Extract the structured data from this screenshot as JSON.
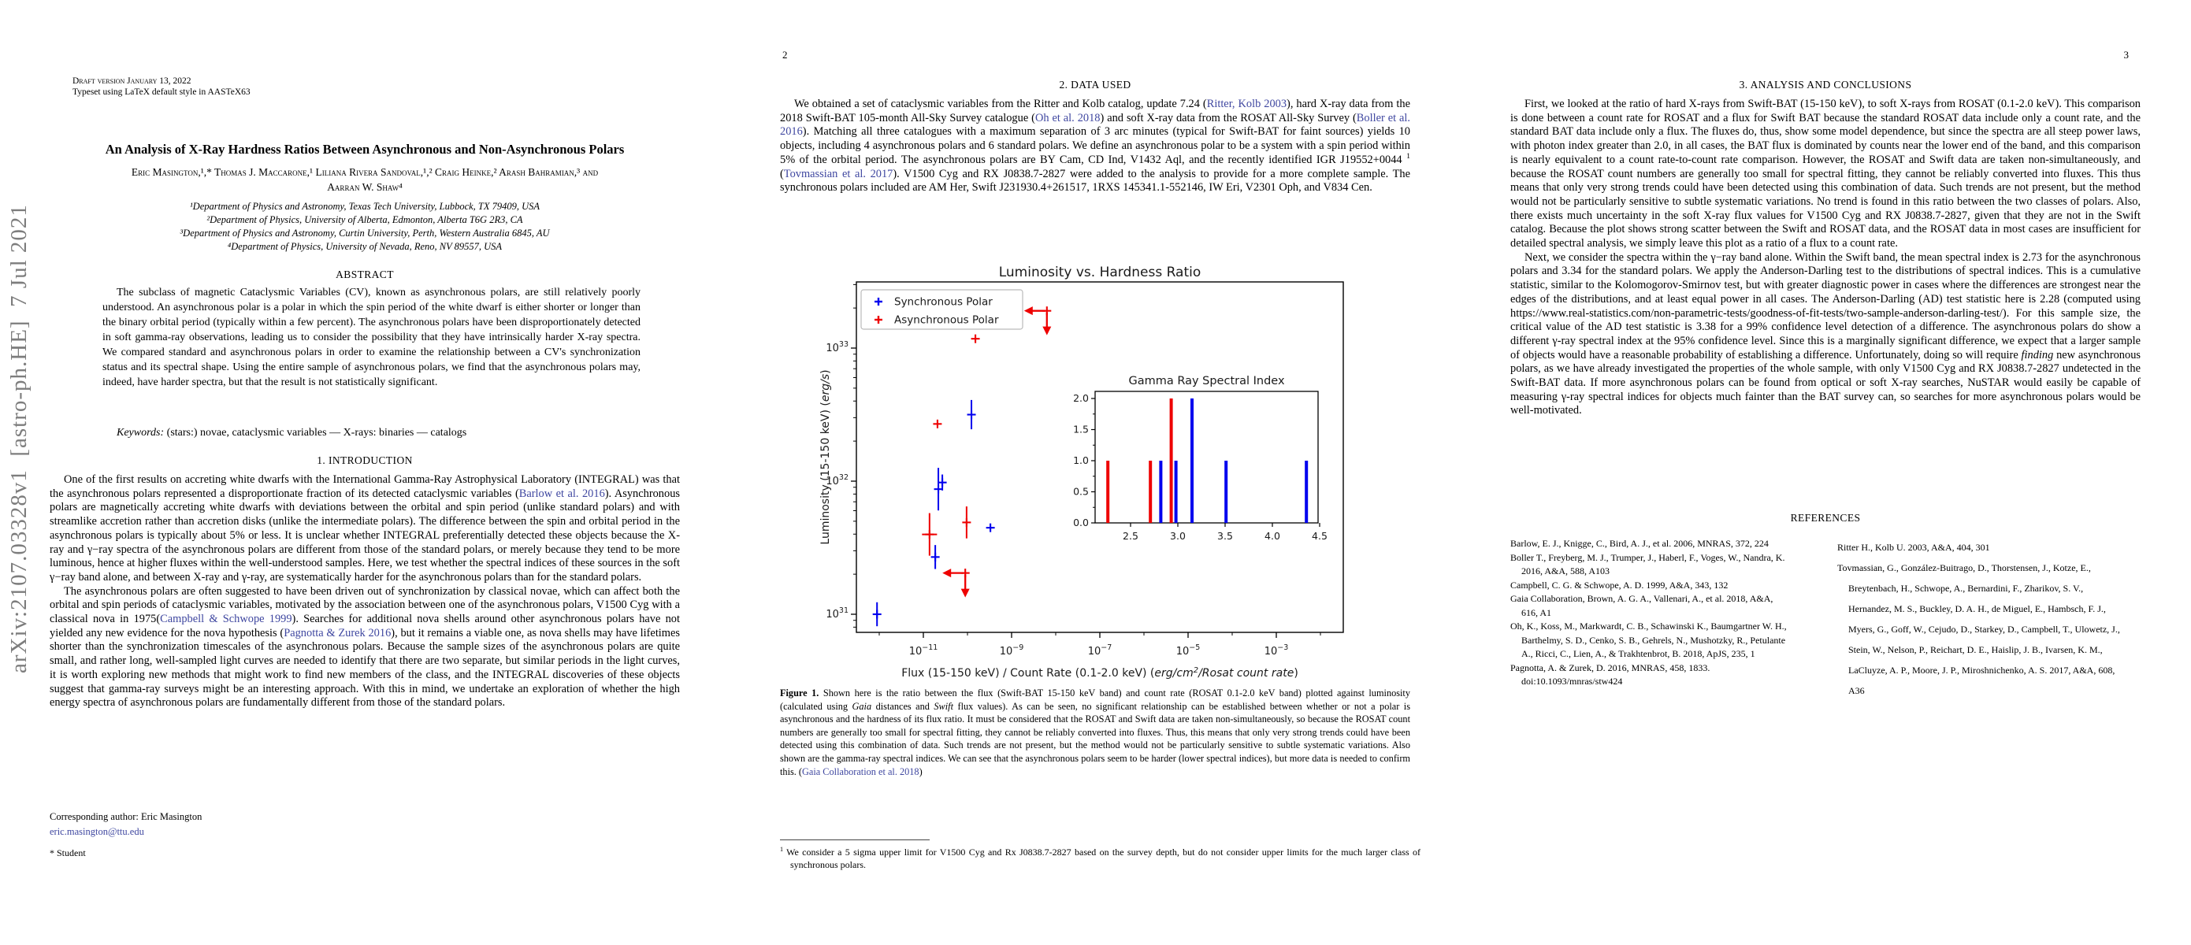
{
  "colors": {
    "link": "#3f47a0",
    "watermark": "#7d7d7d",
    "sync_blue": "#0000ee",
    "async_red": "#ee0000"
  },
  "pages": {
    "page1": {
      "arxiv_watermark": "arXiv:2107.03328v1  [astro-ph.HE]  7 Jul 2021",
      "header_line1": "Draft version January 13, 2022",
      "header_line2": "Typeset using LaTeX default style in AASTeX63",
      "title": "An Analysis of X-Ray Hardness Ratios Between Asynchronous and Non-Asynchronous Polars",
      "authors_line1": "Eric Masington,¹,* Thomas J. Maccarone,¹ Liliana Rivera Sandoval,¹,² Craig Heinke,² Arash Bahramian,³ and",
      "authors_line2": "Aarran W. Shaw⁴",
      "affiliations": [
        "¹Department of Physics and Astronomy, Texas Tech University, Lubbock, TX 79409, USA",
        "²Department of Physics, University of Alberta, Edmonton, Alberta T6G 2R3, CA",
        "³Department of Physics and Astronomy, Curtin University, Perth, Western Australia 6845, AU",
        "⁴Department of Physics, University of Nevada, Reno, NV 89557, USA"
      ],
      "abstract_heading": "ABSTRACT",
      "abstract_text": "The subclass of magnetic Cataclysmic Variables (CV), known as asynchronous polars, are still relatively poorly understood. An asynchronous polar is a polar in which the spin period of the white dwarf is either shorter or longer than the binary orbital period (typically within a few percent). The asynchronous polars have been disproportionately detected in soft gamma-ray observations, leading us to consider the possibility that they have intrinsically harder X-ray spectra. We compared standard and asynchronous polars in order to examine the relationship between a CV's synchronization status and its spectral shape. Using the entire sample of asynchronous polars, we find that the asynchronous polars may, indeed, have harder spectra, but that the result is not statistically significant.",
      "keywords": [
        {
          "t": "Keywords:",
          "s": "i"
        },
        {
          "t": " (stars:) novae, cataclysmic variables — X-rays: binaries — catalogs"
        }
      ],
      "section1_heading": "1. INTRODUCTION",
      "intro_p1": [
        {
          "t": "One of the first results on accreting white dwarfs with the International Gamma-Ray Astrophysical Laboratory (INTEGRAL) was that the asynchronous polars represented a disproportionate fraction of its detected cataclysmic variables ("
        },
        {
          "t": "Barlow et al. 2016",
          "s": "link"
        },
        {
          "t": "). Asynchronous polars are magnetically accreting white dwarfs with deviations between the orbital and spin period (unlike standard polars) and with streamlike accretion rather than accretion disks (unlike the intermediate polars). The difference between the spin and orbital period in the asynchronous polars is typically about 5% or less. It is unclear whether INTEGRAL preferentially detected these objects because the X-ray and γ−ray spectra of the asynchronous polars are different from those of the standard polars, or merely because they tend to be more luminous, hence at higher fluxes within the well-understood samples. Here, we test whether the spectral indices of these sources in the soft γ−ray band alone, and between X-ray and γ-ray, are systematically harder for the asynchronous polars than for the standard polars."
        }
      ],
      "intro_p2": [
        {
          "t": "The asynchronous polars are often suggested to have been driven out of synchronization by classical novae, which can affect both the orbital and spin periods of cataclysmic variables, motivated by the association between one of the asynchronous polars, V1500 Cyg with a classical nova in 1975("
        },
        {
          "t": "Campbell & Schwope 1999",
          "s": "link"
        },
        {
          "t": "). Searches for additional nova shells around other asynchronous polars have not yielded any new evidence for the nova hypothesis ("
        },
        {
          "t": "Pagnotta & Zurek 2016",
          "s": "link"
        },
        {
          "t": "), but it remains a viable one, as nova shells may have lifetimes shorter than the synchronization timescales of the asynchronous polars. Because the sample sizes of the asynchronous polars are quite small, and rather long, well-sampled light curves are needed to identify that there are two separate, but similar periods in the light curves, it is worth exploring new methods that might work to find new members of the class, and the INTEGRAL discoveries of these objects suggest that gamma-ray surveys might be an interesting approach. With this in mind, we undertake an exploration of whether the high energy spectra of asynchronous polars are fundamentally different from those of the standard polars."
        }
      ],
      "corresponding_label": "Corresponding author: Eric Masington",
      "corresponding_email": "eric.masington@ttu.edu",
      "student_note": "* Student"
    },
    "page2": {
      "page_number": "2",
      "section_heading": "2. DATA USED",
      "body": [
        {
          "t": "We obtained a set of cataclysmic variables from the Ritter and Kolb catalog, update 7.24 ("
        },
        {
          "t": "Ritter, Kolb 2003",
          "s": "link"
        },
        {
          "t": "), hard X-ray data from the 2018 Swift-BAT 105-month All-Sky Survey catalogue ("
        },
        {
          "t": "Oh et al. 2018",
          "s": "link"
        },
        {
          "t": ") and soft X-ray data from the ROSAT All-Sky Survey ("
        },
        {
          "t": "Boller et al. 2016",
          "s": "link"
        },
        {
          "t": "). Matching all three catalogues with a maximum separation of 3 arc minutes (typical for Swift-BAT for faint sources) yields 10 objects, including 4 asynchronous polars and 6 standard polars. We define an asynchronous polar to be a system with a spin period within 5% of the orbital period. The asynchronous polars are BY Cam, CD Ind, V1432 Aql, and the recently identified IGR J19552+0044 "
        },
        {
          "t": "1",
          "s": "sup"
        },
        {
          "t": " ("
        },
        {
          "t": "Tovmassian et al. 2017",
          "s": "link"
        },
        {
          "t": "). V1500 Cyg and RX J0838.7-2827 were added to the analysis to provide for a more complete sample. The synchronous polars included are AM Her, Swift J231930.4+261517, 1RXS 145341.1-552146, IW Eri, V2301 Oph, and V834 Cen."
        }
      ],
      "figure_caption": [
        {
          "t": "Figure 1.",
          "s": "b"
        },
        {
          "t": " Shown here is the ratio between the flux (Swift-BAT 15-150 keV band) and count rate (ROSAT 0.1-2.0 keV band) plotted against luminosity (calculated using "
        },
        {
          "t": "Gaia",
          "s": "i"
        },
        {
          "t": " distances and "
        },
        {
          "t": "Swift",
          "s": "i"
        },
        {
          "t": " flux values). As can be seen, no significant relationship can be established between whether or not a polar is asynchronous and the hardness of its flux ratio. It must be considered that the ROSAT and Swift data are taken non-simultaneously, so because the ROSAT count numbers are generally too small for spectral fitting, they cannot be reliably converted into fluxes. Thus, this means that only very strong trends could have been detected using this combination of data. Such trends are not present, but the method would not be particularly sensitive to subtle systematic variations. Also shown are the gamma-ray spectral indices. We can see that the asynchronous polars seem to be harder (lower spectral indices), but more data is needed to confirm this. ("
        },
        {
          "t": "Gaia Collaboration et al. 2018",
          "s": "link"
        },
        {
          "t": ")"
        }
      ],
      "footnote": [
        {
          "t": "1",
          "s": "sup"
        },
        {
          "t": " We consider a 5 sigma upper limit for V1500 Cyg and Rx J0838.7-2827 based on the survey depth, but do not consider upper limits for the much larger class of synchronous polars."
        }
      ]
    },
    "page3": {
      "page_number": "3",
      "section_heading": "3. ANALYSIS AND CONCLUSIONS",
      "p1": [
        {
          "t": "First, we looked at the ratio of hard X-rays from Swift-BAT (15-150 keV), to soft X-rays from ROSAT (0.1-2.0 keV). This comparison is done between a count rate for ROSAT and a flux for Swift BAT because the standard ROSAT data include only a count rate, and the standard BAT data include only a flux. The fluxes do, thus, show some model dependence, but since the spectra are all steep power laws, with photon index greater than 2.0, in all cases, the BAT flux is dominated by counts near the lower end of the band, and this comparison is nearly equivalent to a count rate-to-count rate comparison. However, the ROSAT and Swift data are taken non-simultaneously, and because the ROSAT count numbers are generally too small for spectral fitting, they cannot be reliably converted into fluxes. This thus means that only very strong trends could have been detected using this combination of data. Such trends are not present, but the method would not be particularly sensitive to subtle systematic variations. No trend is found in this ratio between the two classes of polars. Also, there exists much uncertainty in the soft X-ray flux values for V1500 Cyg and RX J0838.7-2827, given that they are not in the Swift catalog. Because the plot shows strong scatter between the Swift and ROSAT data, and the ROSAT data in most cases are insufficient for detailed spectral analysis, we simply leave this plot as a ratio of a flux to a count rate."
        }
      ],
      "p2": [
        {
          "t": "Next, we consider the spectra within the γ−ray band alone. Within the Swift band, the mean spectral index is 2.73 for the asynchronous polars and 3.34 for the standard polars. We apply the Anderson-Darling test to the distributions of spectral indices. This is a cumulative statistic, similar to the Kolomogorov-Smirnov test, but with greater diagnostic power in cases where the differences are strongest near the edges of the distributions, and at least equal power in all cases. The Anderson-Darling (AD) test statistic here is 2.28 (computed using https://www.real-statistics.com/non-parametric-tests/goodness-of-fit-tests/two-sample-anderson-darling-test/). For this sample size, the critical value of the AD test statistic is 3.38 for a 99% confidence level detection of a difference. The asynchronous polars do show a different γ-ray spectral index at the 95% confidence level. Since this is a marginally significant difference, we expect that a larger sample of objects would have a reasonable probability of establishing a difference. Unfortunately, doing so will require "
        },
        {
          "t": "finding",
          "s": "i"
        },
        {
          "t": " new asynchronous polars, as we have already investigated the properties of the whole sample, with only V1500 Cyg and RX J0838.7-2827 undetected in the Swift-BAT data. If more asynchronous polars can be found from optical or soft X-ray searches, NuSTAR would easily be capable of measuring γ-ray spectral indices for objects much fainter than the BAT survey can, so searches for more asynchronous polars would be well-motivated."
        }
      ],
      "references_heading": "REFERENCES",
      "references_left": [
        "Barlow, E. J., Knigge, C., Bird, A. J., et al. 2006, MNRAS, 372, 224",
        "Boller T., Freyberg, M. J., Trumper, J., Haberl, F., Voges, W., Nandra, K.  2016, A&A, 588, A103",
        "Campbell, C. G. & Schwope, A. D. 1999, A&A, 343, 132",
        "Gaia Collaboration, Brown, A. G. A., Vallenari, A., et al. 2018, A&A, 616, A1",
        "Oh, K., Koss, M., Markwardt, C. B., Schawinski K., Baumgartner W. H., Barthelmy, S. D., Cenko, S. B., Gehrels, N., Mushotzky, R., Petulante A., Ricci, C., Lien, A., & Trakhtenbrot, B.  2018, ApJS, 235, 1",
        "Pagnotta, A. & Zurek, D. 2016, MNRAS, 458, 1833. doi:10.1093/mnras/stw424"
      ],
      "references_right": [
        "Ritter H., Kolb U.  2003, A&A, 404, 301",
        "Tovmassian, G., González-Buitrago, D., Thorstensen, J., Kotze, E., Breytenbach, H., Schwope, A., Bernardini, F., Zharikov, S. V., Hernandez, M. S., Buckley, D. A. H., de Miguel, E., Hambsch, F. J., Myers, G., Goff, W., Cejudo, D., Starkey, D., Campbell, T., Ulowetz, J., Stein, W., Nelson, P., Reichart, D. E., Haislip, J. B., Ivarsen, K. M., LaCluyze, A. P., Moore, J. P., Miroshnichenko, A. S.  2017, A&A, 608, A36"
      ]
    }
  },
  "chart_data": {
    "type": "scatter",
    "title": "Luminosity vs. Hardness Ratio",
    "ylabel_segments": [
      {
        "t": "Luminosity (15-150 keV) ("
      },
      {
        "t": "erg/s",
        "s": "i"
      },
      {
        "t": ")"
      }
    ],
    "xlabel_segments": [
      {
        "t": "Flux (15-150 keV) / Count Rate (0.1-2.0 keV) ("
      },
      {
        "t": "erg/cm",
        "s": "i"
      },
      {
        "t": "2",
        "s": "isup"
      },
      {
        "t": "/Rosat count rate",
        "s": "i"
      },
      {
        "t": ")"
      }
    ],
    "x_scale": "log",
    "y_scale": "log",
    "x_log_range": [
      -12.5,
      -1.5
    ],
    "y_log_range": [
      30.88,
      33.5
    ],
    "x_ticks": [
      -11,
      -9,
      -7,
      -5,
      -3
    ],
    "y_ticks": [
      31,
      32,
      33
    ],
    "grid": false,
    "legend_position": "upper-left",
    "legend": [
      {
        "label": "Synchronous Polar",
        "color": "#0000ee"
      },
      {
        "label": "Asynchronous Polar",
        "color": "#ee0000"
      }
    ],
    "series": [
      {
        "name": "Synchronous Polar",
        "color": "#0000ee",
        "points": [
          {
            "logx": -12.05,
            "logy": 31.0,
            "yerr": 0.09
          },
          {
            "logx": -10.73,
            "logy": 31.43,
            "yerr": 0.09
          },
          {
            "logx": -10.66,
            "logy": 31.94,
            "yerr": 0.16
          },
          {
            "logx": -10.57,
            "logy": 31.99,
            "yerr": 0.06
          },
          {
            "logx": -9.91,
            "logy": 32.5,
            "yerr": 0.11
          },
          {
            "logx": -9.48,
            "logy": 31.65,
            "yerr": 0
          }
        ]
      },
      {
        "name": "Asynchronous Polar",
        "color": "#ee0000",
        "points": [
          {
            "logx": -10.86,
            "logy": 31.6,
            "yerr": 0.16,
            "xerr": 0.17
          },
          {
            "logx": -10.68,
            "logy": 32.43,
            "yerr": 0
          },
          {
            "logx": -10.02,
            "logy": 31.69,
            "yerr": 0.12
          },
          {
            "logx": -9.82,
            "logy": 33.07,
            "yerr": 0
          },
          {
            "logx": -8.2,
            "logy": 33.28,
            "upper_limit": true
          },
          {
            "logx": -10.05,
            "logy": 31.31,
            "upper_limit": true
          }
        ]
      }
    ],
    "inset": {
      "type": "bar",
      "title": "Gamma Ray Spectral Index",
      "x_range": [
        2.14,
        4.5
      ],
      "y_range": [
        0,
        2.1
      ],
      "x_ticks": [
        2.5,
        3.0,
        3.5,
        4.0,
        4.5
      ],
      "y_ticks": [
        0.0,
        0.5,
        1.0,
        1.5,
        2.0
      ],
      "bars": [
        {
          "x": 2.26,
          "h": 1,
          "color": "#ee0000"
        },
        {
          "x": 2.71,
          "h": 1,
          "color": "#ee0000"
        },
        {
          "x": 2.82,
          "h": 1,
          "color": "#0000ee"
        },
        {
          "x": 2.93,
          "h": 2,
          "color": "#ee0000"
        },
        {
          "x": 2.98,
          "h": 1,
          "color": "#0000ee"
        },
        {
          "x": 3.15,
          "h": 2,
          "color": "#0000ee"
        },
        {
          "x": 3.51,
          "h": 1,
          "color": "#0000ee"
        },
        {
          "x": 4.36,
          "h": 1,
          "color": "#0000ee"
        }
      ]
    }
  }
}
